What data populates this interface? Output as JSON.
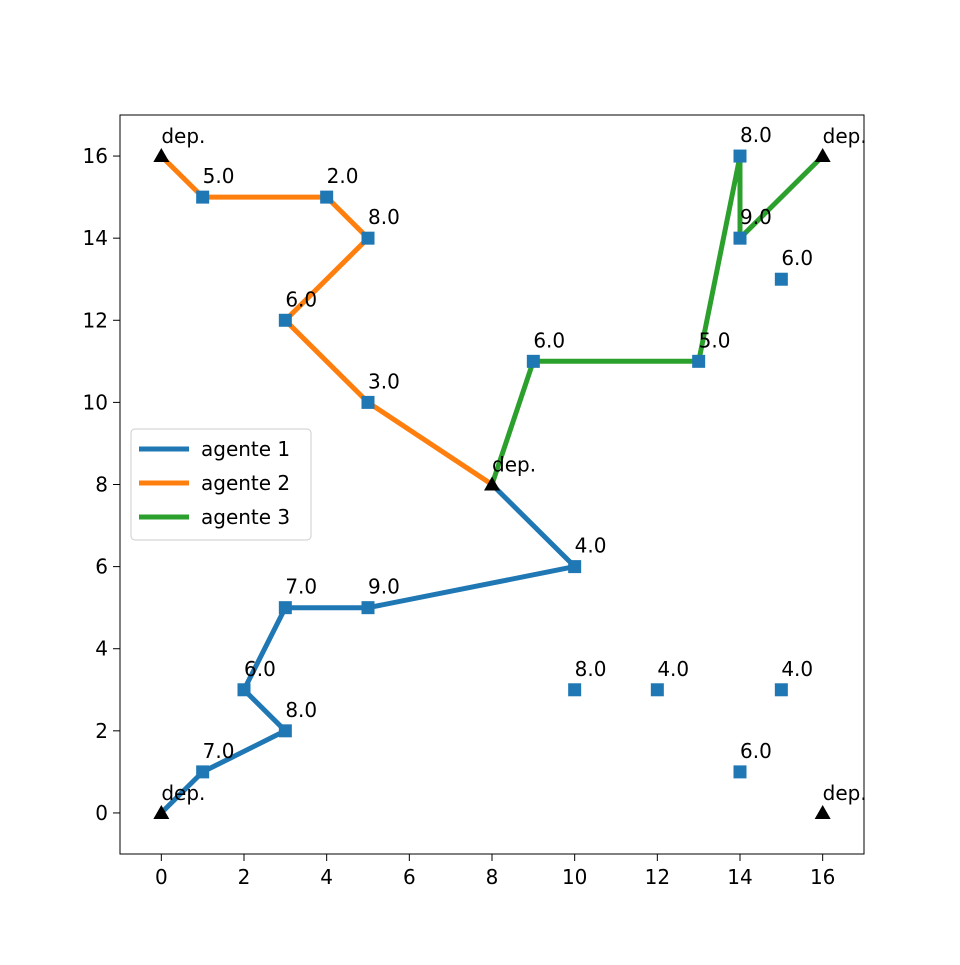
{
  "chart_data": {
    "type": "scatter",
    "title": "",
    "xlabel": "",
    "ylabel": "",
    "xlim": [
      -1,
      17
    ],
    "ylim": [
      -1,
      17
    ],
    "xticks": [
      "0",
      "2",
      "4",
      "6",
      "8",
      "10",
      "12",
      "14",
      "16"
    ],
    "yticks": [
      "0",
      "2",
      "4",
      "6",
      "8",
      "10",
      "12",
      "14",
      "16"
    ],
    "grid": false,
    "legend_position": "center-left",
    "depots": [
      {
        "x": 0,
        "y": 0,
        "label": "dep."
      },
      {
        "x": 0,
        "y": 16,
        "label": "dep."
      },
      {
        "x": 16,
        "y": 16,
        "label": "dep."
      },
      {
        "x": 16,
        "y": 0,
        "label": "dep."
      },
      {
        "x": 8,
        "y": 8,
        "label": "dep."
      }
    ],
    "customers": [
      {
        "x": 1,
        "y": 1,
        "label": "7.0"
      },
      {
        "x": 3,
        "y": 2,
        "label": "8.0"
      },
      {
        "x": 2,
        "y": 3,
        "label": "6.0"
      },
      {
        "x": 3,
        "y": 5,
        "label": "7.0"
      },
      {
        "x": 5,
        "y": 5,
        "label": "9.0"
      },
      {
        "x": 10,
        "y": 6,
        "label": "4.0"
      },
      {
        "x": 10,
        "y": 3,
        "label": "8.0"
      },
      {
        "x": 12,
        "y": 3,
        "label": "4.0"
      },
      {
        "x": 15,
        "y": 3,
        "label": "4.0"
      },
      {
        "x": 14,
        "y": 1,
        "label": "6.0"
      },
      {
        "x": 1,
        "y": 15,
        "label": "5.0"
      },
      {
        "x": 4,
        "y": 15,
        "label": "2.0"
      },
      {
        "x": 5,
        "y": 14,
        "label": "8.0"
      },
      {
        "x": 3,
        "y": 12,
        "label": "6.0"
      },
      {
        "x": 5,
        "y": 10,
        "label": "3.0"
      },
      {
        "x": 9,
        "y": 11,
        "label": "6.0"
      },
      {
        "x": 13,
        "y": 11,
        "label": "5.0"
      },
      {
        "x": 14,
        "y": 16,
        "label": "8.0"
      },
      {
        "x": 14,
        "y": 14,
        "label": "9.0"
      },
      {
        "x": 15,
        "y": 13,
        "label": "6.0"
      }
    ],
    "series": [
      {
        "name": "agente 1",
        "color": "#1f77b4",
        "x": [
          0,
          1,
          3,
          2,
          3,
          5,
          10,
          8
        ],
        "y": [
          0,
          1,
          2,
          3,
          5,
          5,
          6,
          8
        ]
      },
      {
        "name": "agente 2",
        "color": "#ff7f0e",
        "x": [
          0,
          1,
          4,
          5,
          3,
          5,
          8
        ],
        "y": [
          16,
          15,
          15,
          14,
          12,
          10,
          8
        ]
      },
      {
        "name": "agente 3",
        "color": "#2ca02c",
        "x": [
          8,
          9,
          13,
          14,
          14,
          16
        ],
        "y": [
          8,
          11,
          11,
          16,
          14,
          16
        ]
      }
    ],
    "marker_color": "#1f77b4",
    "depot_color": "#000000"
  }
}
